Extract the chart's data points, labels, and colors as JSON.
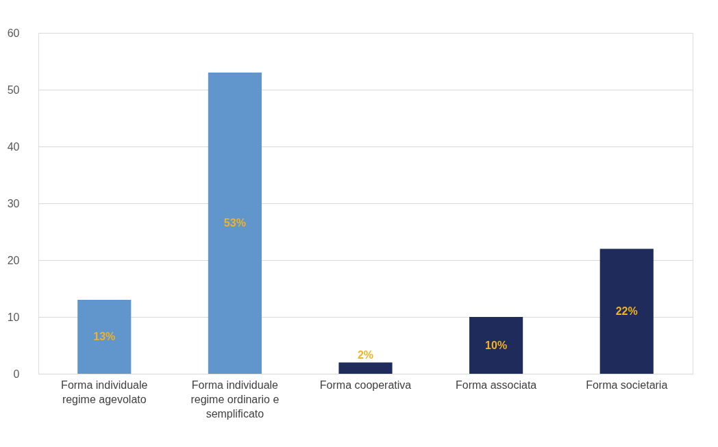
{
  "chart_data": {
    "type": "bar",
    "categories": [
      "Forma individuale regime agevolato",
      "Forma individuale regime ordinario e semplificato",
      "Forma cooperativa",
      "Forma associata",
      "Forma societaria"
    ],
    "values": [
      13,
      53,
      2,
      10,
      22
    ],
    "colors": [
      "#6096cb",
      "#6096cb",
      "#1f2b5a",
      "#1f2b5a",
      "#1f2b5a"
    ],
    "value_labels": [
      "13%",
      "53%",
      "2%",
      "10%",
      "22%"
    ],
    "ylim": [
      0,
      60
    ],
    "yticks": [
      0,
      10,
      20,
      30,
      40,
      50,
      60
    ],
    "grid": "y"
  }
}
